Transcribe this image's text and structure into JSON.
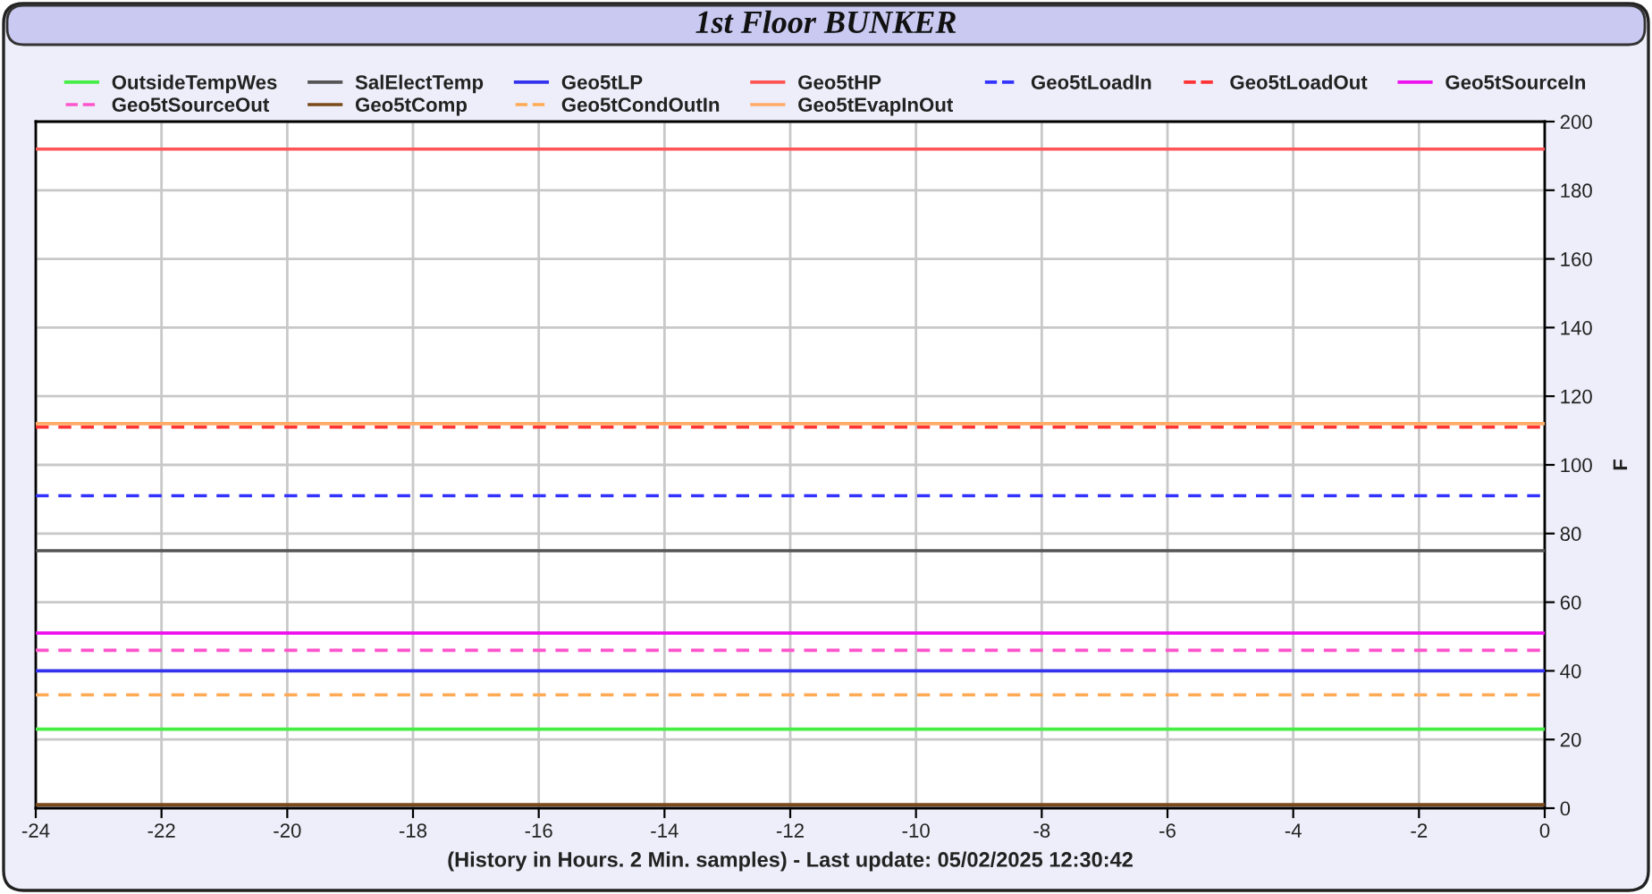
{
  "chart_data": {
    "type": "line",
    "title": "1st Floor BUNKER",
    "xlabel": "(History in Hours. 2 Min. samples) - Last update: 05/02/2025 12:30:42",
    "ylabel": "F",
    "x": [
      -24,
      0
    ],
    "series": [
      {
        "name": "OutsideTempWes",
        "color": "#44ee44",
        "line_style": "solid",
        "values": [
          23,
          23
        ]
      },
      {
        "name": "SalElectTemp",
        "color": "#555555",
        "line_style": "solid",
        "values": [
          75,
          75
        ]
      },
      {
        "name": "Geo5tLP",
        "color": "#3333ee",
        "line_style": "solid",
        "values": [
          40,
          40
        ]
      },
      {
        "name": "Geo5tHP",
        "color": "#ff5555",
        "line_style": "solid",
        "values": [
          192,
          192
        ]
      },
      {
        "name": "Geo5tLoadIn",
        "color": "#3333ff",
        "line_style": "dashed",
        "values": [
          91,
          91
        ]
      },
      {
        "name": "Geo5tLoadOut",
        "color": "#ff3333",
        "line_style": "dashed",
        "values": [
          111,
          111
        ]
      },
      {
        "name": "Geo5tSourceIn",
        "color": "#ee11ee",
        "line_style": "solid",
        "values": [
          51,
          51
        ]
      },
      {
        "name": "Geo5tSourceOut",
        "color": "#ff55cc",
        "line_style": "dashed",
        "values": [
          46,
          46
        ]
      },
      {
        "name": "Geo5tComp",
        "color": "#7a4a1a",
        "line_style": "solid",
        "values": [
          1,
          1
        ]
      },
      {
        "name": "Geo5tCondOutIn",
        "color": "#ffaa55",
        "line_style": "dashed",
        "values": [
          33,
          33
        ]
      },
      {
        "name": "Geo5tEvapInOut",
        "color": "#ffaa66",
        "line_style": "solid",
        "values": [
          112,
          112
        ]
      }
    ],
    "xlim": [
      -24,
      0
    ],
    "xticks": [
      -24,
      -22,
      -20,
      -18,
      -16,
      -14,
      -12,
      -10,
      -8,
      -6,
      -4,
      -2,
      0
    ],
    "ylim": [
      0,
      200
    ],
    "yticks": [
      0,
      20,
      40,
      60,
      80,
      100,
      120,
      140,
      160,
      180,
      200
    ],
    "grid": true,
    "legend": "top"
  }
}
